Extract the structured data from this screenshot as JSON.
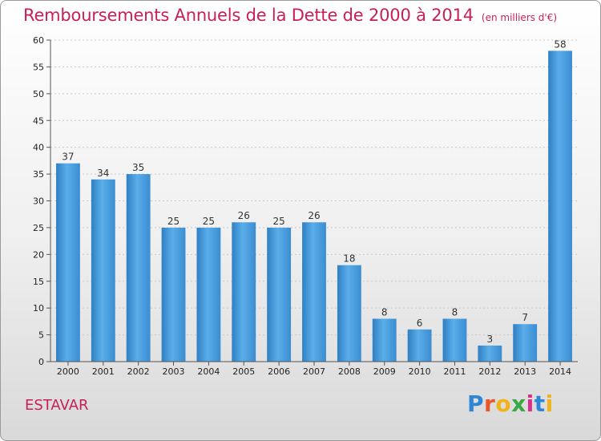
{
  "chart_data": {
    "type": "bar",
    "title": "Remboursements Annuels de la Dette de 2000 à 2014",
    "subtitle": "(en milliers d'€)",
    "categories": [
      "2000",
      "2001",
      "2002",
      "2003",
      "2004",
      "2005",
      "2006",
      "2007",
      "2008",
      "2009",
      "2010",
      "2011",
      "2012",
      "2013",
      "2014"
    ],
    "values": [
      37,
      34,
      35,
      25,
      25,
      26,
      25,
      26,
      18,
      8,
      6,
      8,
      3,
      7,
      58
    ],
    "ylim": [
      0,
      60
    ],
    "yticks": [
      0,
      5,
      10,
      15,
      20,
      25,
      30,
      35,
      40,
      45,
      50,
      55,
      60
    ],
    "grid": true,
    "bar_color": "#4a9fe0"
  },
  "footer": {
    "commune": "ESTAVAR"
  },
  "logo": {
    "letters": [
      "P",
      "r",
      "o",
      "x",
      "i",
      "t",
      "i"
    ],
    "colors": [
      "#2e86d6",
      "#e8562a",
      "#f2b21a",
      "#3aa845",
      "#d62f8c",
      "#2e86d6",
      "#f2b21a"
    ]
  }
}
